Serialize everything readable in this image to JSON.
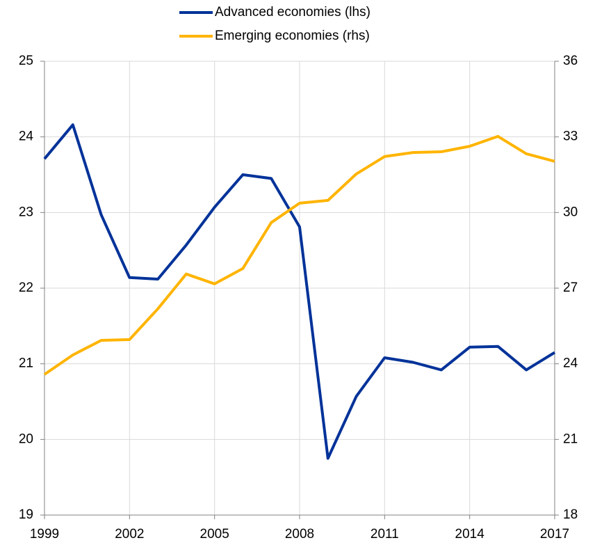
{
  "chart_data": {
    "type": "line",
    "x": [
      1999,
      2000,
      2001,
      2002,
      2003,
      2004,
      2005,
      2006,
      2007,
      2008,
      2009,
      2010,
      2011,
      2012,
      2013,
      2014,
      2015,
      2016,
      2017
    ],
    "series": [
      {
        "name": "Advanced economies (lhs)",
        "color": "#003299",
        "values": [
          23.71,
          24.16,
          22.97,
          22.14,
          22.12,
          22.57,
          23.07,
          23.5,
          23.45,
          22.81,
          19.75,
          20.57,
          21.08,
          21.02,
          20.92,
          21.22,
          21.23,
          20.92,
          21.15
        ]
      },
      {
        "name": "Emerging economies (rhs)",
        "color": "#ffb400",
        "axis": "y2",
        "values": [
          23.58,
          24.35,
          24.93,
          24.96,
          26.18,
          27.56,
          27.17,
          27.78,
          29.6,
          30.37,
          30.48,
          31.53,
          32.22,
          32.38,
          32.41,
          32.63,
          33.02,
          32.33,
          32.03
        ]
      }
    ],
    "xlim": [
      1999,
      2017
    ],
    "xticks": [
      1999,
      2002,
      2005,
      2008,
      2011,
      2014,
      2017
    ],
    "ylim": [
      19,
      25
    ],
    "yticks": [
      19,
      20,
      21,
      22,
      23,
      24,
      25
    ],
    "y2lim": [
      18,
      36
    ],
    "y2ticks": [
      18,
      21,
      24,
      27,
      30,
      33,
      36
    ],
    "grid": true,
    "legend": "top"
  }
}
